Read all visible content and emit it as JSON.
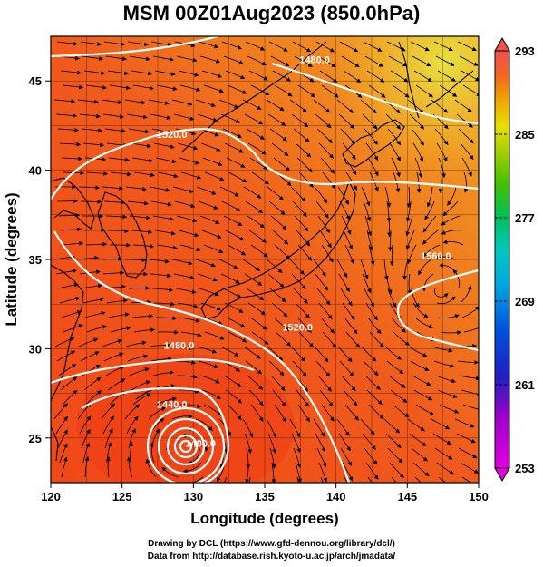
{
  "title": "MSM 00Z01Aug2023 (850.0hPa)",
  "x_axis": {
    "label": "Longitude (degrees)",
    "range": [
      120,
      150
    ],
    "ticks": [
      "120",
      "125",
      "130",
      "135",
      "140",
      "145",
      "150"
    ]
  },
  "y_axis": {
    "label": "Latitude  (degrees)",
    "range": [
      22.5,
      47.5
    ],
    "ticks": [
      "25",
      "30",
      "35",
      "40",
      "45"
    ]
  },
  "colorbar": {
    "range": [
      253,
      293
    ],
    "ticks": [
      "293",
      "285",
      "277",
      "269",
      "261",
      "253"
    ],
    "colors": [
      "#e000e0",
      "#b000d0",
      "#2020c0",
      "#0050e0",
      "#00a0e0",
      "#00c8c0",
      "#00c060",
      "#40c000",
      "#a0d000",
      "#e0e000",
      "#f0b000",
      "#f07000",
      "#f04020",
      "#f05050"
    ]
  },
  "contours": [
    {
      "label": "1480.0",
      "lon": 138.5,
      "lat": 46.0
    },
    {
      "label": "1520.0",
      "lon": 128.5,
      "lat": 41.8
    },
    {
      "label": "1560.0",
      "lon": 147.0,
      "lat": 35.0
    },
    {
      "label": "1520.0",
      "lon": 137.3,
      "lat": 31.0
    },
    {
      "label": "1480.0",
      "lon": 129.0,
      "lat": 30.0
    },
    {
      "label": "1440.0",
      "lon": 128.5,
      "lat": 26.7
    },
    {
      "label": "1400.0",
      "lon": 130.5,
      "lat": 24.5
    }
  ],
  "typhoon_center": {
    "lon": 129.5,
    "lat": 24.5
  },
  "credits": [
    "Drawing by DCL (https://www.gfd-dennou.org/library/dcl/)",
    "Data from http://database.rish.kyoto-u.ac.jp/arch/jmadata/"
  ]
}
